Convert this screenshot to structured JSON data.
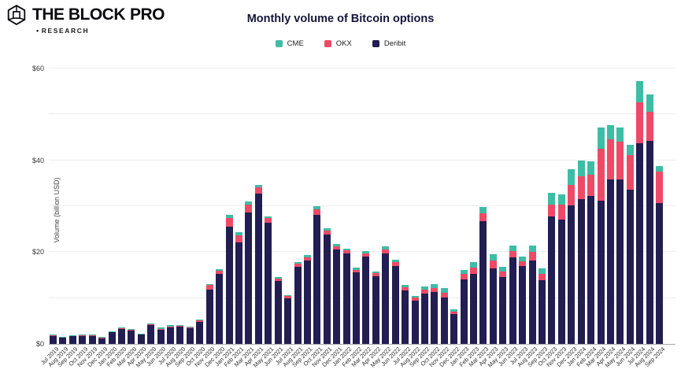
{
  "header": {
    "logo": {
      "brand": "THE BLOCK",
      "brand_pro": "PRO",
      "pro_color": "#1e53f0",
      "bullet": "•",
      "sub": "RESEARCH"
    }
  },
  "chart": {
    "title": "Monthly volume of Bitcoin options",
    "ylabel": "Volume (billion USD)",
    "yticks": [
      {
        "value": 0,
        "label": "$0"
      },
      {
        "value": 20,
        "label": "$20"
      },
      {
        "value": 40,
        "label": "$40"
      },
      {
        "value": 60,
        "label": "$60"
      }
    ]
  },
  "chart_data": {
    "type": "bar",
    "stacked": true,
    "title": "Monthly volume of Bitcoin options",
    "xlabel": "",
    "ylabel": "Volume (billion USD)",
    "ylim": [
      0,
      60
    ],
    "grid_step": 10,
    "grid": true,
    "legend_position": "top",
    "stack_order_bottom_to_top": [
      "Deribit",
      "OKX",
      "CME"
    ],
    "categories": [
      "Jul 2019",
      "Aug 2019",
      "Sep 2019",
      "Oct 2019",
      "Nov 2019",
      "Dec 2019",
      "Jan 2020",
      "Feb 2020",
      "Mar 2020",
      "Apr 2020",
      "May 2020",
      "Jun 2020",
      "Jul 2020",
      "Aug 2020",
      "Sep 2020",
      "Oct 2020",
      "Nov 2020",
      "Dec 2020",
      "Jan 2021",
      "Feb 2021",
      "Mar 2021",
      "Apr 2021",
      "May 2021",
      "Jun 2021",
      "Jul 2021",
      "Aug 2021",
      "Sep 2021",
      "Oct 2021",
      "Nov 2021",
      "Dec 2021",
      "Jan 2022",
      "Feb 2022",
      "Mar 2022",
      "Apr 2022",
      "May 2022",
      "Jun 2022",
      "Jul 2022",
      "Aug 2022",
      "Sep 2022",
      "Oct 2022",
      "Nov 2022",
      "Dec 2022",
      "Jan 2023",
      "Feb 2023",
      "Mar 2023",
      "Apr 2023",
      "May 2023",
      "Jun 2023",
      "Jul 2023",
      "Aug 2023",
      "Sep 2023",
      "Oct 2023",
      "Nov 2023",
      "Dec 2023",
      "Jan 2024",
      "Feb 2024",
      "Mar 2024",
      "Apr 2024",
      "May 2024",
      "Jun 2024",
      "Jul 2024",
      "Aug 2024",
      "Sep 2024"
    ],
    "series": [
      {
        "name": "CME",
        "color": "#3dbda5",
        "values": [
          0.05,
          0.05,
          0.05,
          0.05,
          0.05,
          0.05,
          0.1,
          0.1,
          0.1,
          0.1,
          0.2,
          0.3,
          0.3,
          0.2,
          0.2,
          0.2,
          0.2,
          0.3,
          0.7,
          0.6,
          0.7,
          0.6,
          0.4,
          0.3,
          0.2,
          0.3,
          0.4,
          0.7,
          0.5,
          0.5,
          0.4,
          0.4,
          0.5,
          0.4,
          0.6,
          0.5,
          0.4,
          0.4,
          0.7,
          0.8,
          0.9,
          0.4,
          0.9,
          1.1,
          1.4,
          1.4,
          1.0,
          1.3,
          1.1,
          1.3,
          1.3,
          2.6,
          2.3,
          3.4,
          3.4,
          2.9,
          4.5,
          3.2,
          3.1,
          2.3,
          4.6,
          3.7,
          1.1
        ]
      },
      {
        "name": "OKX",
        "color": "#ee4a67",
        "values": [
          0.05,
          0.05,
          0.05,
          0.05,
          0.05,
          0.05,
          0.05,
          0.1,
          0.1,
          0.05,
          0.1,
          0.1,
          0.1,
          0.2,
          0.2,
          0.3,
          0.9,
          0.8,
          2.0,
          1.6,
          1.7,
          1.4,
          1.0,
          0.5,
          0.4,
          0.7,
          0.8,
          1.1,
          0.9,
          0.8,
          0.7,
          0.6,
          0.7,
          0.7,
          0.9,
          0.8,
          0.7,
          0.6,
          0.8,
          0.9,
          1.0,
          0.5,
          1.1,
          1.4,
          1.7,
          1.7,
          1.2,
          1.3,
          1.1,
          2.0,
          1.3,
          2.6,
          3.2,
          4.6,
          5.1,
          4.7,
          11.4,
          8.6,
          8.2,
          7.5,
          8.9,
          6.3,
          6.9
        ]
      },
      {
        "name": "Deribit",
        "color": "#221e52",
        "values": [
          1.9,
          1.5,
          1.8,
          1.9,
          1.9,
          1.4,
          2.65,
          3.4,
          3.0,
          2.15,
          4.2,
          3.2,
          3.7,
          3.8,
          3.4,
          4.8,
          11.9,
          15.2,
          25.5,
          22.1,
          28.6,
          32.7,
          26.4,
          13.8,
          10.0,
          16.8,
          18.1,
          28.2,
          23.8,
          20.5,
          19.7,
          15.6,
          19.1,
          14.7,
          19.7,
          17.0,
          11.7,
          9.5,
          11.0,
          11.3,
          10.2,
          6.6,
          14.1,
          15.3,
          26.7,
          16.4,
          14.6,
          18.9,
          16.9,
          18.1,
          13.9,
          27.7,
          27.1,
          30.1,
          31.5,
          32.2,
          31.2,
          35.9,
          35.8,
          33.6,
          43.7,
          44.3,
          30.7
        ]
      }
    ]
  }
}
